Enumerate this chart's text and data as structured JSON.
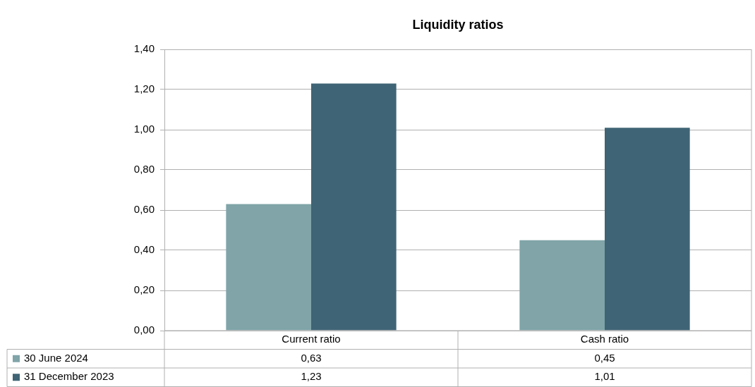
{
  "chart_data": {
    "type": "bar",
    "title": "Liquidity ratios",
    "categories": [
      "Current ratio",
      "Cash ratio"
    ],
    "series": [
      {
        "name": "30 June 2024",
        "color": "#80a4a8",
        "values": [
          0.63,
          0.45
        ],
        "value_labels": [
          "0,63",
          "0,45"
        ]
      },
      {
        "name": "31 December 2023",
        "color": "#3f6475",
        "values": [
          1.23,
          1.01
        ],
        "value_labels": [
          "1,23",
          "1,01"
        ]
      }
    ],
    "ylim": [
      0,
      1.4
    ],
    "yticks": [
      {
        "value": 0,
        "label": "0,00"
      },
      {
        "value": 0.2,
        "label": "0,20"
      },
      {
        "value": 0.4,
        "label": "0,40"
      },
      {
        "value": 0.6,
        "label": "0,60"
      },
      {
        "value": 0.8,
        "label": "0,80"
      },
      {
        "value": 1,
        "label": "1,00"
      },
      {
        "value": 1.2,
        "label": "1,20"
      },
      {
        "value": 1.4,
        "label": "1,40"
      }
    ],
    "grid": "y",
    "legend": "bottom"
  }
}
